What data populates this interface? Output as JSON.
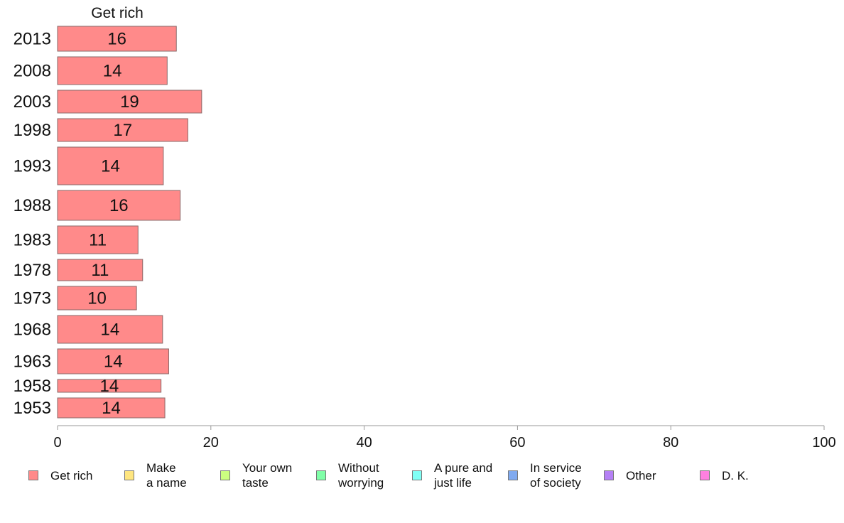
{
  "chart_data": {
    "type": "bar",
    "orientation": "horizontal",
    "panel_title": "Get rich",
    "categories": [
      "2013",
      "2008",
      "2003",
      "1998",
      "1993",
      "1988",
      "1983",
      "1978",
      "1973",
      "1968",
      "1963",
      "1958",
      "1953"
    ],
    "series": [
      {
        "name": "Get rich",
        "values": [
          15.5,
          14.3,
          18.8,
          17.0,
          13.8,
          16.0,
          10.5,
          11.1,
          10.3,
          13.7,
          14.5,
          13.5,
          14.0
        ],
        "labels": [
          "16",
          "14",
          "19",
          "17",
          "14",
          "16",
          "11",
          "11",
          "10",
          "14",
          "14",
          "14",
          "14"
        ]
      }
    ],
    "xlim": [
      0,
      100
    ],
    "xticks": [
      "0",
      "20",
      "40",
      "60",
      "80",
      "100"
    ],
    "grid": false,
    "legend_position": "bottom"
  },
  "legend": {
    "items": [
      {
        "label": "Get rich",
        "color": "#FF8A8A"
      },
      {
        "label": "Make\na name",
        "color": "#FFE680"
      },
      {
        "label": "Your own\ntaste",
        "color": "#CCFF80"
      },
      {
        "label": "Without\nworrying",
        "color": "#80FFA8"
      },
      {
        "label": "A pure and\njust life",
        "color": "#80FFF5"
      },
      {
        "label": "In service\nof society",
        "color": "#80AAF0"
      },
      {
        "label": "Other",
        "color": "#B580F5"
      },
      {
        "label": "D. K.",
        "color": "#FF80E0"
      }
    ]
  }
}
